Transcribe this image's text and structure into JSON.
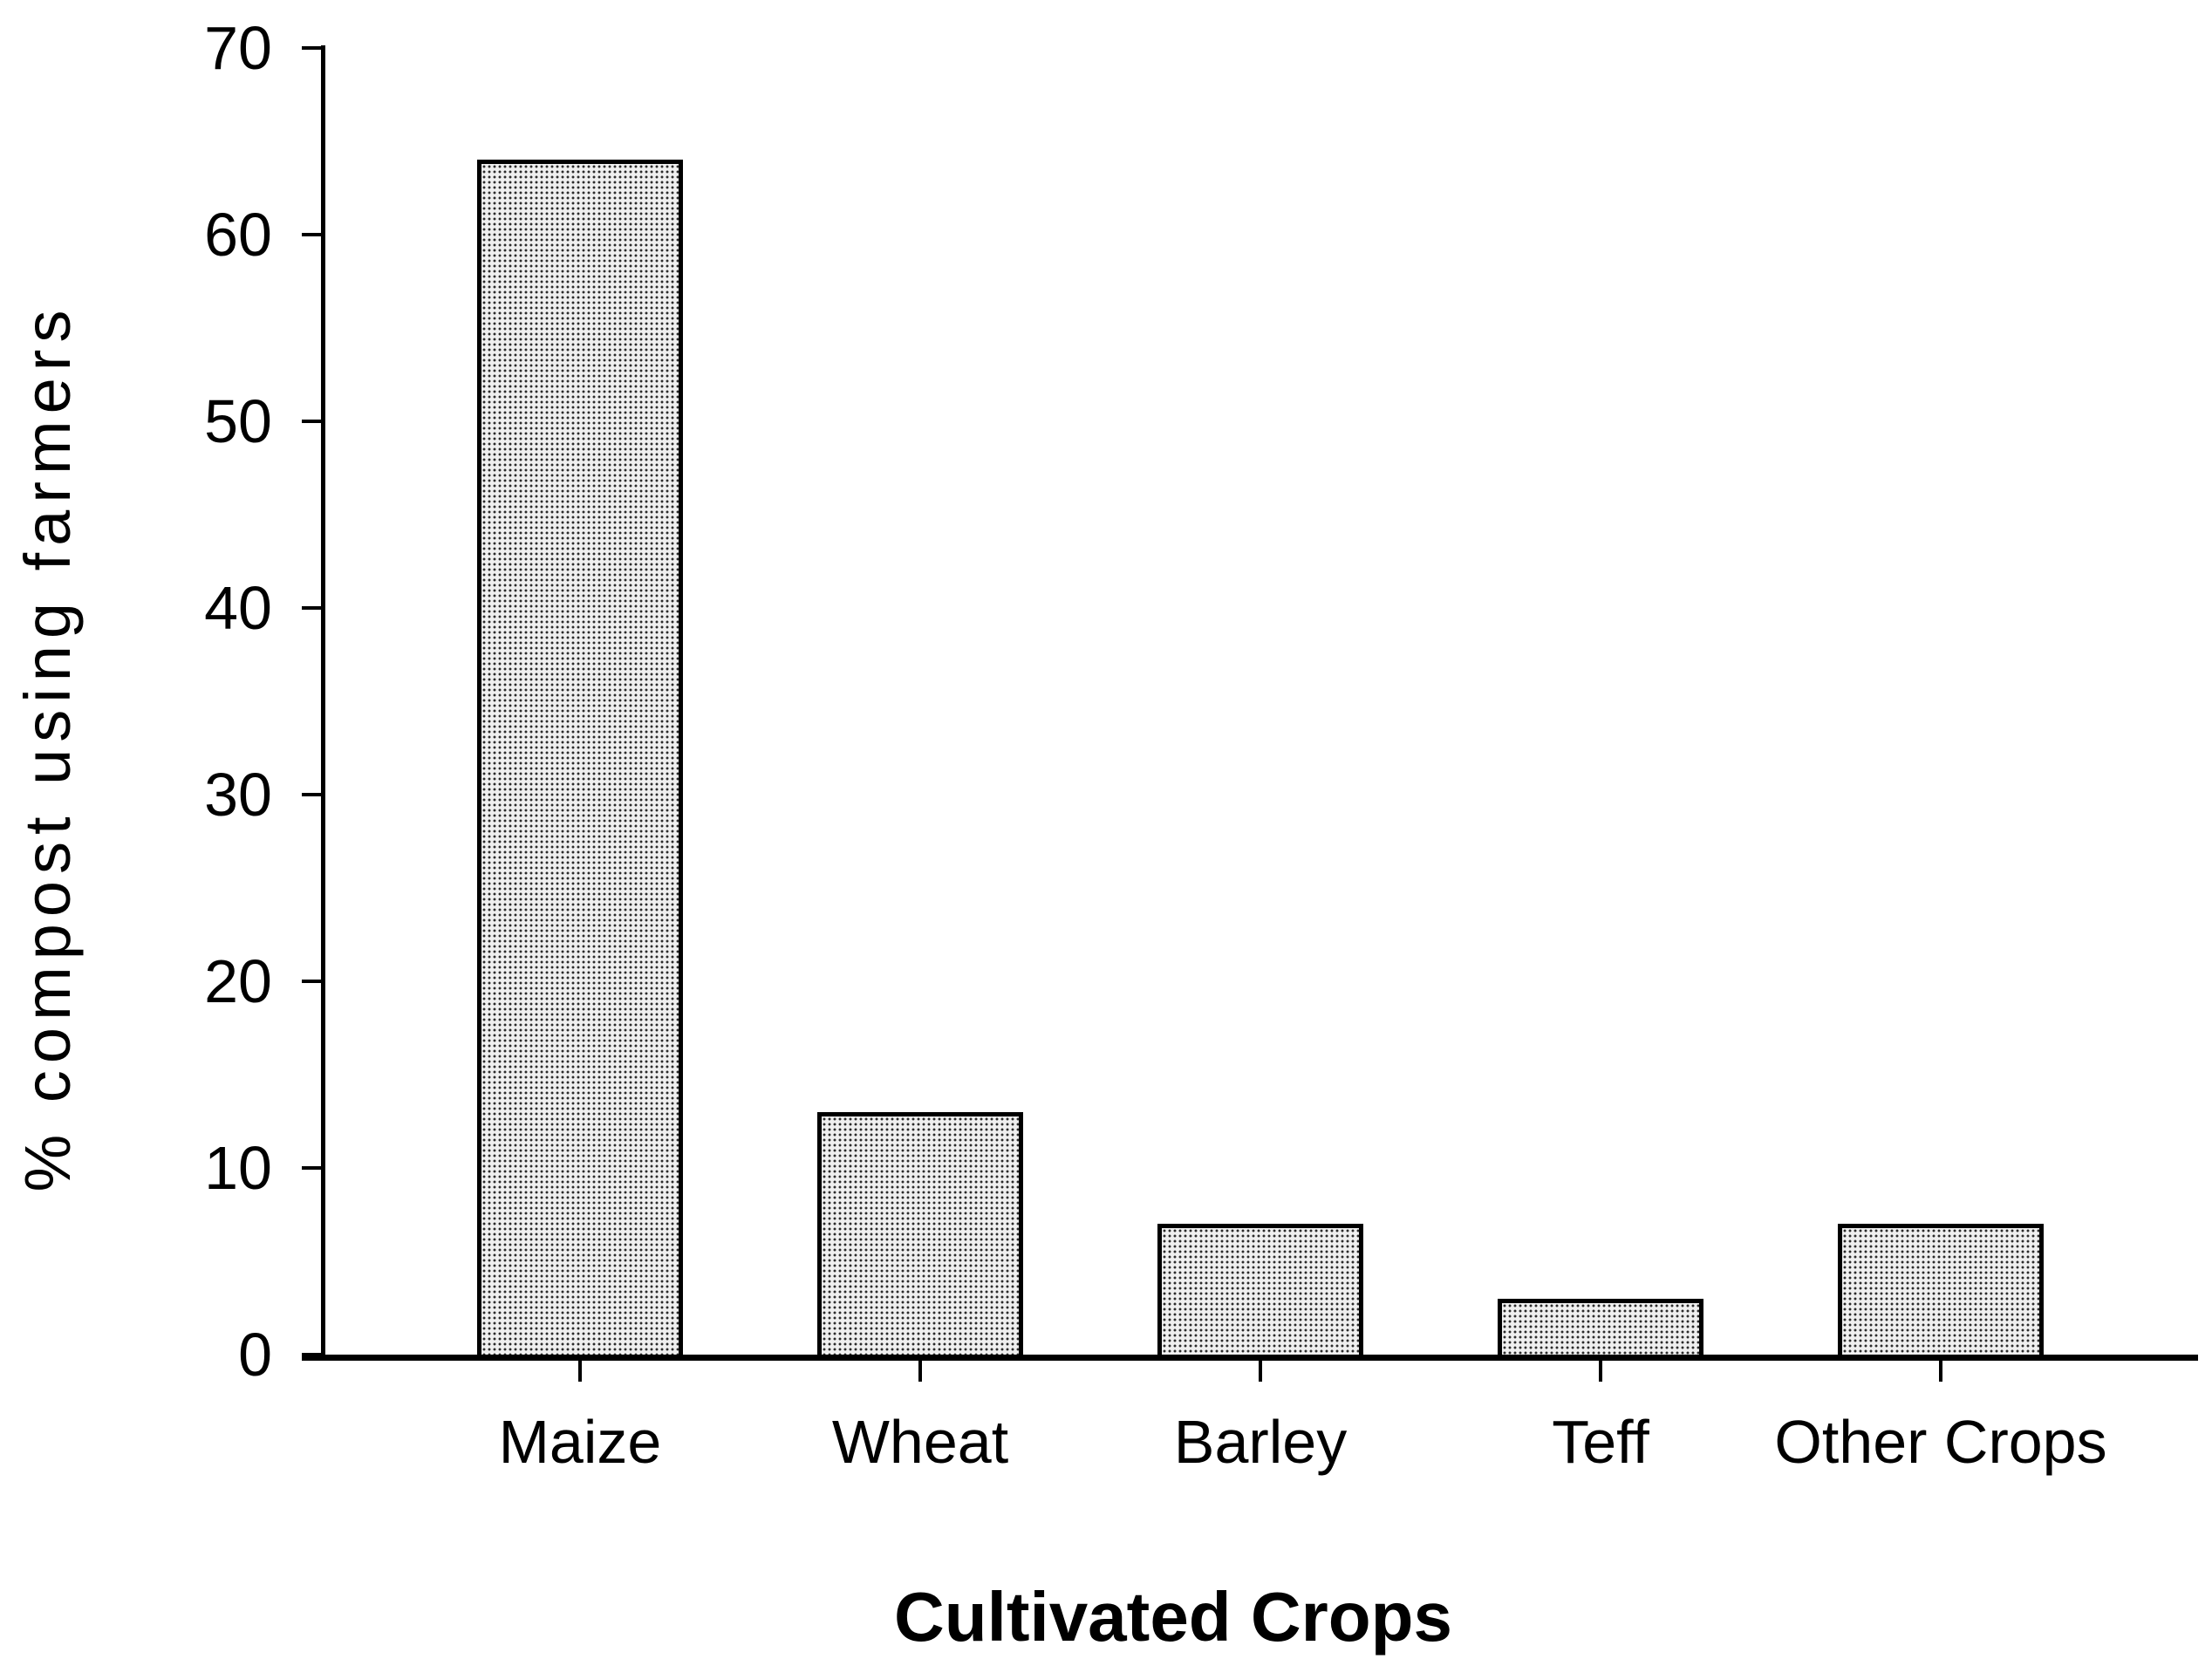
{
  "chart_data": {
    "type": "bar",
    "title": "",
    "categories": [
      "Maize",
      "Wheat",
      "Barley",
      "Teff",
      "Other Crops"
    ],
    "values": [
      64,
      13,
      7,
      3,
      7
    ],
    "xlabel": "Cultivated Crops",
    "ylabel": "% compost using farmers",
    "ylim": [
      0,
      70
    ],
    "yticks": [
      0,
      10,
      20,
      30,
      40,
      50,
      60,
      70
    ],
    "grid": false,
    "legend": null,
    "bar_fill_color": "#d2d2d2",
    "bar_pattern": "halftone-dots",
    "bar_border_color": "#000000",
    "axis_color": "#000000",
    "text_color": "#000000",
    "background_color": "#ffffff"
  }
}
